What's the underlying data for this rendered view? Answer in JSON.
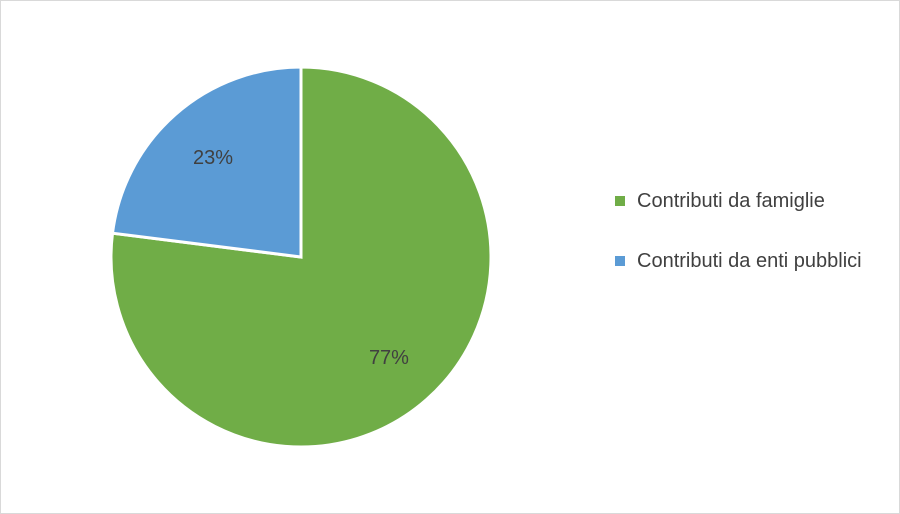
{
  "chart_data": {
    "type": "pie",
    "title": "",
    "slices": [
      {
        "label": "Contributi da famiglie",
        "value": 77,
        "display": "77%",
        "color": "#70AD47"
      },
      {
        "label": "Contributi da enti pubblici",
        "value": 23,
        "display": "23%",
        "color": "#5B9BD5"
      }
    ],
    "legend_position": "right"
  }
}
